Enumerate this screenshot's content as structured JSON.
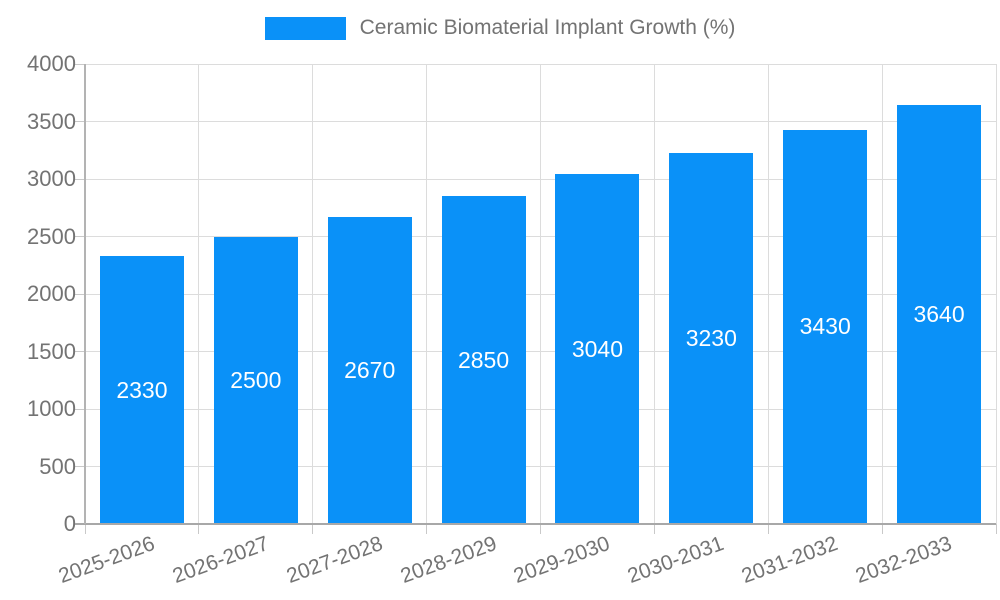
{
  "legend": {
    "label": "Ceramic Biomaterial Implant Growth (%)",
    "swatch_color": "#0a91f8"
  },
  "chart_data": {
    "type": "bar",
    "title": "Ceramic Biomaterial Implant Growth (%)",
    "categories": [
      "2025-2026",
      "2026-2027",
      "2027-2028",
      "2028-2029",
      "2029-2030",
      "2030-2031",
      "2031-2032",
      "2032-2033"
    ],
    "values": [
      2330,
      2500,
      2670,
      2850,
      3040,
      3230,
      3430,
      3640
    ],
    "value_labels": [
      "2330",
      "2500",
      "2670",
      "2850",
      "3040",
      "3230",
      "3430",
      "3640"
    ],
    "xlabel": "",
    "ylabel": "",
    "ylim": [
      0,
      4000
    ],
    "yticks": [
      0,
      500,
      1000,
      1500,
      2000,
      2500,
      3000,
      3500,
      4000
    ],
    "ytick_labels": [
      "0",
      "500",
      "1000",
      "1500",
      "2000",
      "2500",
      "3000",
      "3500",
      "4000"
    ],
    "grid": true,
    "legend_position": "top",
    "bar_color": "#0a91f8",
    "bar_label_color": "#ffffff",
    "axis_text_color": "#737373",
    "gridline_color": "#dcdcdc",
    "axis_line_color": "#a8a8a8"
  }
}
